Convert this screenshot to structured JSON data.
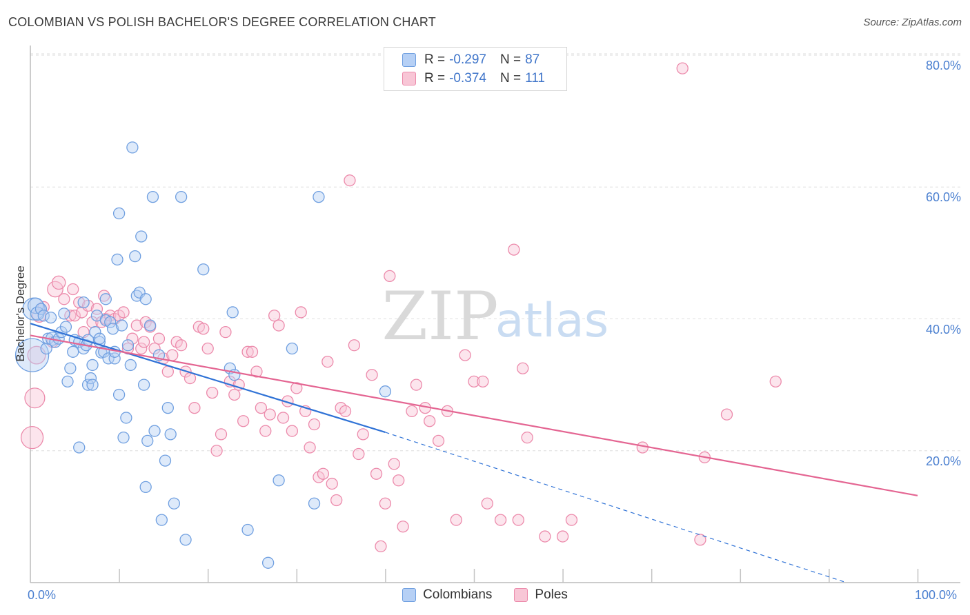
{
  "title": "COLOMBIAN VS POLISH BACHELOR'S DEGREE CORRELATION CHART",
  "source": "Source: ZipAtlas.com",
  "watermark": {
    "zip": "ZIP",
    "atlas": "atlas"
  },
  "colors": {
    "blue_fill": "#b6d0f5",
    "blue_stroke": "#6f9fe0",
    "blue_line": "#2f72d6",
    "pink_fill": "#f8c6d6",
    "pink_stroke": "#ec8aab",
    "pink_line": "#e46592",
    "grid": "#dddddd",
    "tick_text": "#4a7fd0"
  },
  "legend": {
    "rows": [
      {
        "series": "Colombians",
        "r_label": "R =",
        "r_value": "-0.297",
        "n_label": "N =",
        "n_value": "87"
      },
      {
        "series": "Poles",
        "r_label": "R =",
        "r_value": "-0.374",
        "n_label": "N =",
        "n_value": "111"
      }
    ]
  },
  "chart_data": {
    "type": "scatter",
    "title": "COLOMBIAN VS POLISH BACHELOR'S DEGREE CORRELATION CHART",
    "xlabel": "",
    "ylabel": "Bachelor's Degree",
    "xlim": [
      0,
      100
    ],
    "ylim": [
      0,
      80
    ],
    "x_tick_labels": [
      "0.0%",
      "100.0%"
    ],
    "y_tick_labels": [
      "20.0%",
      "40.0%",
      "60.0%",
      "80.0%"
    ],
    "y_ticks": [
      20,
      40,
      60,
      80
    ],
    "x_minor_ticks": [
      10,
      20,
      30,
      40,
      50,
      60,
      70,
      80,
      90,
      100
    ],
    "grid": true,
    "legend_position": "top-center",
    "series": [
      {
        "name": "Colombians",
        "color": "blue",
        "trend": {
          "x0": 0,
          "y0": 39.3,
          "x1": 40,
          "y1": 22.8,
          "dashed_to_x": 92,
          "dashed_to_y": 0
        },
        "points": [
          [
            0.2,
            34.5,
            3
          ],
          [
            0.4,
            41.5,
            2
          ],
          [
            0.6,
            42.0,
            1.4
          ],
          [
            0.8,
            40.8,
            1.2
          ],
          [
            1.2,
            41.5,
            1
          ],
          [
            1.5,
            40.5,
            1
          ],
          [
            1.8,
            35.5,
            1
          ],
          [
            2.0,
            37.0,
            1
          ],
          [
            2.3,
            40.2,
            1
          ],
          [
            2.5,
            37.0,
            1.2
          ],
          [
            2.8,
            36.5,
            1
          ],
          [
            3.2,
            37.0,
            1
          ],
          [
            3.5,
            38.0,
            1
          ],
          [
            3.8,
            40.8,
            1
          ],
          [
            4.0,
            38.8,
            1
          ],
          [
            4.2,
            30.5,
            1
          ],
          [
            4.5,
            32.5,
            1
          ],
          [
            4.8,
            35.0,
            1
          ],
          [
            5.0,
            36.8,
            1
          ],
          [
            5.5,
            20.5,
            1
          ],
          [
            5.5,
            36.5,
            1
          ],
          [
            6.0,
            35.5,
            1
          ],
          [
            6.0,
            42.5,
            1
          ],
          [
            6.3,
            36.0,
            1
          ],
          [
            6.5,
            30.0,
            1
          ],
          [
            6.5,
            36.8,
            1
          ],
          [
            6.8,
            31.0,
            1
          ],
          [
            7.0,
            30.0,
            1
          ],
          [
            7.0,
            33.0,
            1
          ],
          [
            7.3,
            38.0,
            1
          ],
          [
            7.5,
            40.5,
            1
          ],
          [
            7.8,
            36.5,
            1
          ],
          [
            7.8,
            37.0,
            1
          ],
          [
            8.0,
            34.9,
            1
          ],
          [
            8.3,
            35.0,
            1
          ],
          [
            8.5,
            39.8,
            1
          ],
          [
            8.5,
            43.0,
            1
          ],
          [
            8.8,
            34.0,
            1
          ],
          [
            9.0,
            39.5,
            1
          ],
          [
            9.3,
            38.5,
            1
          ],
          [
            9.5,
            34.0,
            1
          ],
          [
            9.5,
            35.0,
            1
          ],
          [
            9.8,
            49.0,
            1
          ],
          [
            10.0,
            28.5,
            1
          ],
          [
            10.0,
            56.0,
            1
          ],
          [
            10.3,
            39.0,
            1
          ],
          [
            10.5,
            22.0,
            1
          ],
          [
            10.8,
            25.0,
            1
          ],
          [
            11.0,
            36.0,
            1
          ],
          [
            11.3,
            33.0,
            1
          ],
          [
            11.5,
            66.0,
            1
          ],
          [
            11.8,
            49.5,
            1
          ],
          [
            12.0,
            43.5,
            1
          ],
          [
            12.3,
            44.0,
            1
          ],
          [
            12.5,
            52.5,
            1
          ],
          [
            12.8,
            30.0,
            1
          ],
          [
            13.0,
            14.5,
            1
          ],
          [
            13.0,
            43.0,
            1
          ],
          [
            13.2,
            21.5,
            1
          ],
          [
            13.5,
            39.0,
            1
          ],
          [
            13.8,
            58.5,
            1
          ],
          [
            14.0,
            23.0,
            1
          ],
          [
            14.5,
            34.5,
            1
          ],
          [
            14.8,
            9.5,
            1
          ],
          [
            15.2,
            18.5,
            1
          ],
          [
            15.5,
            26.5,
            1
          ],
          [
            15.8,
            22.5,
            1
          ],
          [
            16.2,
            12.0,
            1
          ],
          [
            17.0,
            58.5,
            1
          ],
          [
            17.5,
            6.5,
            1
          ],
          [
            19.5,
            47.5,
            1
          ],
          [
            22.5,
            32.5,
            1
          ],
          [
            22.8,
            41.0,
            1
          ],
          [
            23.0,
            31.5,
            1
          ],
          [
            24.5,
            8.0,
            1
          ],
          [
            26.8,
            3.0,
            1
          ],
          [
            28.0,
            15.5,
            1
          ],
          [
            29.5,
            35.5,
            1
          ],
          [
            32.0,
            12.0,
            1
          ],
          [
            32.5,
            58.5,
            1
          ],
          [
            40.0,
            29.0,
            1
          ]
        ]
      },
      {
        "name": "Poles",
        "color": "pink",
        "trend": {
          "x0": 0,
          "y0": 37.5,
          "x1": 100,
          "y1": 13.2
        },
        "points": [
          [
            0.2,
            22.0,
            2
          ],
          [
            0.5,
            28.0,
            1.8
          ],
          [
            0.7,
            34.5,
            1.6
          ],
          [
            1.0,
            40.5,
            1.2
          ],
          [
            1.5,
            41.8,
            1
          ],
          [
            2.5,
            36.5,
            1
          ],
          [
            2.8,
            44.5,
            1.4
          ],
          [
            3.2,
            45.5,
            1.2
          ],
          [
            3.8,
            43.0,
            1
          ],
          [
            4.5,
            40.5,
            1
          ],
          [
            4.8,
            44.5,
            1
          ],
          [
            5.0,
            40.5,
            1
          ],
          [
            5.5,
            42.5,
            1
          ],
          [
            5.8,
            41.0,
            1
          ],
          [
            6.0,
            38.0,
            1
          ],
          [
            6.5,
            42.0,
            1
          ],
          [
            7.0,
            39.5,
            1
          ],
          [
            7.5,
            41.5,
            1
          ],
          [
            8.0,
            39.5,
            1
          ],
          [
            8.3,
            43.5,
            1
          ],
          [
            8.5,
            40.0,
            1
          ],
          [
            9.0,
            40.5,
            1
          ],
          [
            9.5,
            40.0,
            1
          ],
          [
            10.0,
            40.5,
            1
          ],
          [
            10.5,
            41.0,
            1
          ],
          [
            11.0,
            35.5,
            1
          ],
          [
            11.5,
            37.0,
            1
          ],
          [
            12.0,
            39.0,
            1
          ],
          [
            12.5,
            35.5,
            1
          ],
          [
            12.8,
            36.5,
            1
          ],
          [
            13.0,
            39.5,
            1
          ],
          [
            13.5,
            38.8,
            1
          ],
          [
            14.0,
            35.5,
            1
          ],
          [
            14.5,
            37.0,
            1
          ],
          [
            15.0,
            34.0,
            1
          ],
          [
            15.5,
            32.0,
            1
          ],
          [
            16.0,
            34.5,
            1
          ],
          [
            16.5,
            36.5,
            1
          ],
          [
            17.0,
            36.0,
            1
          ],
          [
            17.5,
            32.0,
            1
          ],
          [
            18.0,
            31.0,
            1
          ],
          [
            18.5,
            26.5,
            1
          ],
          [
            19.0,
            38.8,
            1
          ],
          [
            19.5,
            38.5,
            1
          ],
          [
            20.0,
            35.5,
            1
          ],
          [
            20.5,
            28.8,
            1
          ],
          [
            21.0,
            20.0,
            1
          ],
          [
            21.5,
            22.5,
            1
          ],
          [
            22.0,
            38.0,
            1
          ],
          [
            22.5,
            30.5,
            1
          ],
          [
            23.0,
            28.5,
            1
          ],
          [
            23.5,
            30.0,
            1
          ],
          [
            24.0,
            24.5,
            1
          ],
          [
            24.5,
            35.0,
            1
          ],
          [
            25.0,
            35.0,
            1
          ],
          [
            25.5,
            32.0,
            1
          ],
          [
            26.0,
            26.5,
            1
          ],
          [
            26.5,
            23.0,
            1
          ],
          [
            27.0,
            25.5,
            1
          ],
          [
            27.5,
            40.5,
            1
          ],
          [
            28.0,
            39.0,
            1
          ],
          [
            28.5,
            25.0,
            1
          ],
          [
            29.0,
            27.5,
            1
          ],
          [
            29.5,
            23.0,
            1
          ],
          [
            30.0,
            29.5,
            1
          ],
          [
            30.5,
            41.0,
            1
          ],
          [
            31.0,
            26.0,
            1
          ],
          [
            31.5,
            20.5,
            1
          ],
          [
            32.0,
            24.0,
            1
          ],
          [
            32.5,
            16.0,
            1
          ],
          [
            33.0,
            16.5,
            1
          ],
          [
            33.5,
            33.5,
            1
          ],
          [
            34.0,
            15.0,
            1
          ],
          [
            34.5,
            12.5,
            1
          ],
          [
            35.0,
            26.5,
            1
          ],
          [
            35.5,
            26.0,
            1
          ],
          [
            36.0,
            61.0,
            1
          ],
          [
            36.5,
            36.0,
            1
          ],
          [
            37.0,
            19.5,
            1
          ],
          [
            37.5,
            22.5,
            1
          ],
          [
            38.5,
            31.5,
            1
          ],
          [
            39.0,
            16.5,
            1
          ],
          [
            39.5,
            5.5,
            1
          ],
          [
            40.0,
            12.0,
            1
          ],
          [
            40.5,
            46.5,
            1
          ],
          [
            41.0,
            18.0,
            1
          ],
          [
            41.5,
            15.5,
            1
          ],
          [
            42.0,
            8.5,
            1
          ],
          [
            43.0,
            26.0,
            1
          ],
          [
            43.5,
            30.0,
            1
          ],
          [
            44.5,
            26.5,
            1
          ],
          [
            45.0,
            24.5,
            1
          ],
          [
            46.0,
            21.5,
            1
          ],
          [
            47.0,
            26.0,
            1
          ],
          [
            48.0,
            9.5,
            1
          ],
          [
            49.0,
            34.5,
            1
          ],
          [
            50.0,
            30.5,
            1
          ],
          [
            51.0,
            30.5,
            1
          ],
          [
            51.5,
            12.0,
            1
          ],
          [
            53.0,
            9.5,
            1
          ],
          [
            54.5,
            50.5,
            1
          ],
          [
            55.0,
            9.5,
            1
          ],
          [
            55.5,
            32.5,
            1
          ],
          [
            56.0,
            22.0,
            1
          ],
          [
            58.0,
            7.0,
            1
          ],
          [
            60.0,
            7.0,
            1
          ],
          [
            61.0,
            9.5,
            1
          ],
          [
            69.0,
            20.5,
            1
          ],
          [
            73.5,
            78.0,
            1
          ],
          [
            75.5,
            6.5,
            1
          ],
          [
            76.0,
            19.0,
            1
          ],
          [
            78.5,
            25.5,
            1
          ],
          [
            84.0,
            30.5,
            1
          ]
        ]
      }
    ],
    "bottom_legend": [
      "Colombians",
      "Poles"
    ]
  }
}
